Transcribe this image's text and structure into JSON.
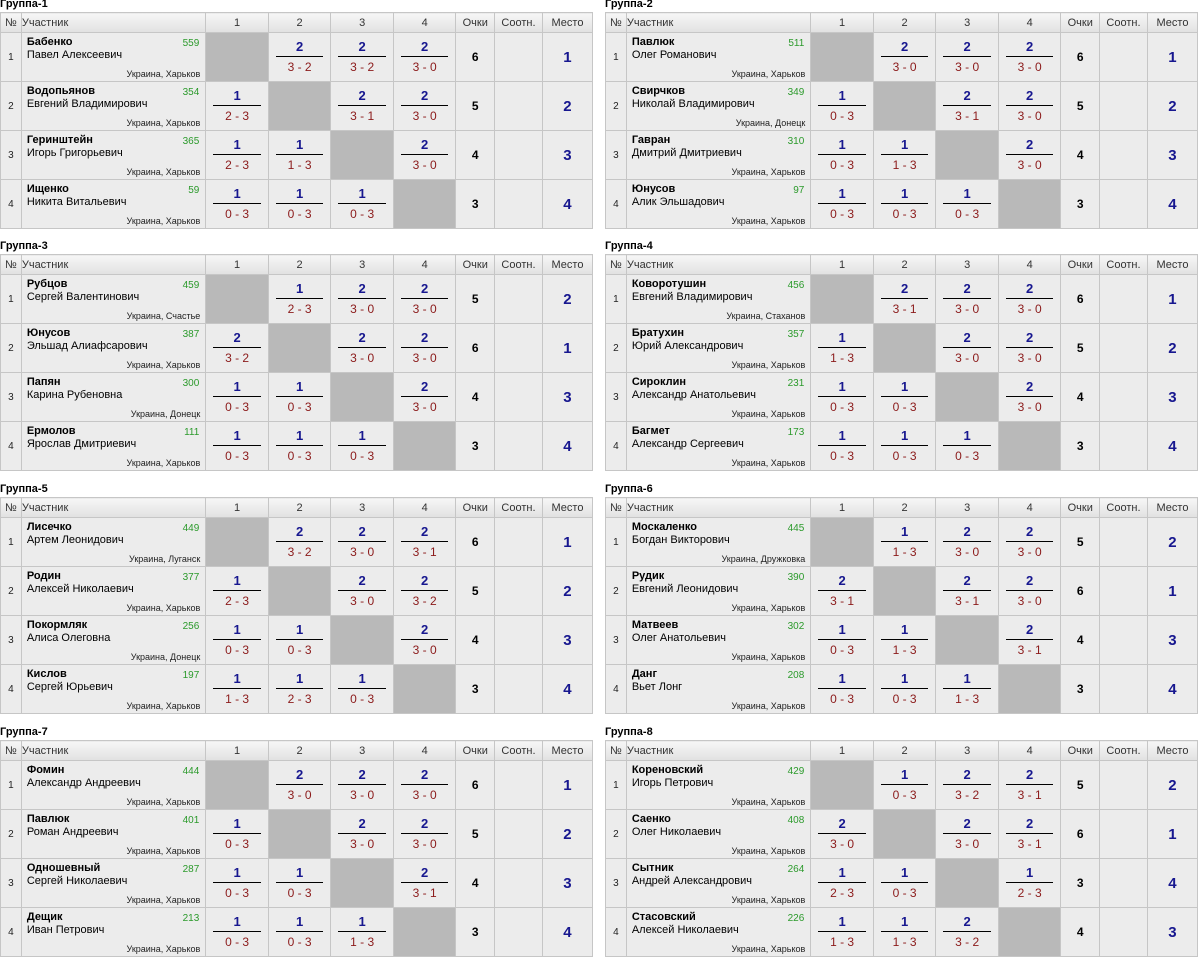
{
  "headers": {
    "no": "№",
    "participant": "Участник",
    "cols": [
      "1",
      "2",
      "3",
      "4"
    ],
    "points": "Очки",
    "ratio": "Соотн.",
    "place": "Место"
  },
  "groups": [
    {
      "title": "Группа-1",
      "players": [
        {
          "num": "1",
          "last": "Бабенко",
          "first": "Павел Алексеевич",
          "rating": "559",
          "loc": "Украина, Харьков",
          "results": [
            null,
            {
              "p": "2",
              "s": "3 - 2"
            },
            {
              "p": "2",
              "s": "3 - 2"
            },
            {
              "p": "2",
              "s": "3 - 0"
            }
          ],
          "total": "6",
          "place": "1"
        },
        {
          "num": "2",
          "last": "Водопьянов",
          "first": "Евгений Владимирович",
          "rating": "354",
          "loc": "Украина, Харьков",
          "results": [
            {
              "p": "1",
              "s": "2 - 3"
            },
            null,
            {
              "p": "2",
              "s": "3 - 1"
            },
            {
              "p": "2",
              "s": "3 - 0"
            }
          ],
          "total": "5",
          "place": "2"
        },
        {
          "num": "3",
          "last": "Геринштейн",
          "first": "Игорь Григорьевич",
          "rating": "365",
          "loc": "Украина, Харьков",
          "results": [
            {
              "p": "1",
              "s": "2 - 3"
            },
            {
              "p": "1",
              "s": "1 - 3"
            },
            null,
            {
              "p": "2",
              "s": "3 - 0"
            }
          ],
          "total": "4",
          "place": "3"
        },
        {
          "num": "4",
          "last": "Ищенко",
          "first": "Никита Витальевич",
          "rating": "59",
          "loc": "Украина, Харьков",
          "results": [
            {
              "p": "1",
              "s": "0 - 3"
            },
            {
              "p": "1",
              "s": "0 - 3"
            },
            {
              "p": "1",
              "s": "0 - 3"
            },
            null
          ],
          "total": "3",
          "place": "4"
        }
      ]
    },
    {
      "title": "Группа-2",
      "players": [
        {
          "num": "1",
          "last": "Павлюк",
          "first": "Олег Романович",
          "rating": "511",
          "loc": "Украина, Харьков",
          "results": [
            null,
            {
              "p": "2",
              "s": "3 - 0"
            },
            {
              "p": "2",
              "s": "3 - 0"
            },
            {
              "p": "2",
              "s": "3 - 0"
            }
          ],
          "total": "6",
          "place": "1"
        },
        {
          "num": "2",
          "last": "Свирчков",
          "first": "Николай Владимирович",
          "rating": "349",
          "loc": "Украина, Донецк",
          "results": [
            {
              "p": "1",
              "s": "0 - 3"
            },
            null,
            {
              "p": "2",
              "s": "3 - 1"
            },
            {
              "p": "2",
              "s": "3 - 0"
            }
          ],
          "total": "5",
          "place": "2"
        },
        {
          "num": "3",
          "last": "Гавран",
          "first": "Дмитрий Дмитриевич",
          "rating": "310",
          "loc": "Украина, Харьков",
          "results": [
            {
              "p": "1",
              "s": "0 - 3"
            },
            {
              "p": "1",
              "s": "1 - 3"
            },
            null,
            {
              "p": "2",
              "s": "3 - 0"
            }
          ],
          "total": "4",
          "place": "3"
        },
        {
          "num": "4",
          "last": "Юнусов",
          "first": "Алик Эльшадович",
          "rating": "97",
          "loc": "Украина, Харьков",
          "results": [
            {
              "p": "1",
              "s": "0 - 3"
            },
            {
              "p": "1",
              "s": "0 - 3"
            },
            {
              "p": "1",
              "s": "0 - 3"
            },
            null
          ],
          "total": "3",
          "place": "4"
        }
      ]
    },
    {
      "title": "Группа-3",
      "players": [
        {
          "num": "1",
          "last": "Рубцов",
          "first": "Сергей Валентинович",
          "rating": "459",
          "loc": "Украина, Счастье",
          "results": [
            null,
            {
              "p": "1",
              "s": "2 - 3"
            },
            {
              "p": "2",
              "s": "3 - 0"
            },
            {
              "p": "2",
              "s": "3 - 0"
            }
          ],
          "total": "5",
          "place": "2"
        },
        {
          "num": "2",
          "last": "Юнусов",
          "first": "Эльшад Алиафсарович",
          "rating": "387",
          "loc": "Украина, Харьков",
          "results": [
            {
              "p": "2",
              "s": "3 - 2"
            },
            null,
            {
              "p": "2",
              "s": "3 - 0"
            },
            {
              "p": "2",
              "s": "3 - 0"
            }
          ],
          "total": "6",
          "place": "1"
        },
        {
          "num": "3",
          "last": "Папян",
          "first": "Карина Рубеновна",
          "rating": "300",
          "loc": "Украина, Донецк",
          "results": [
            {
              "p": "1",
              "s": "0 - 3"
            },
            {
              "p": "1",
              "s": "0 - 3"
            },
            null,
            {
              "p": "2",
              "s": "3 - 0"
            }
          ],
          "total": "4",
          "place": "3"
        },
        {
          "num": "4",
          "last": "Ермолов",
          "first": "Ярослав Дмитриевич",
          "rating": "111",
          "loc": "Украина, Харьков",
          "results": [
            {
              "p": "1",
              "s": "0 - 3"
            },
            {
              "p": "1",
              "s": "0 - 3"
            },
            {
              "p": "1",
              "s": "0 - 3"
            },
            null
          ],
          "total": "3",
          "place": "4"
        }
      ]
    },
    {
      "title": "Группа-4",
      "players": [
        {
          "num": "1",
          "last": "Коворотушин",
          "first": "Евгений Владимирович",
          "rating": "456",
          "loc": "Украина, Стаханов",
          "results": [
            null,
            {
              "p": "2",
              "s": "3 - 1"
            },
            {
              "p": "2",
              "s": "3 - 0"
            },
            {
              "p": "2",
              "s": "3 - 0"
            }
          ],
          "total": "6",
          "place": "1"
        },
        {
          "num": "2",
          "last": "Братухин",
          "first": "Юрий Александрович",
          "rating": "357",
          "loc": "Украина, Харьков",
          "results": [
            {
              "p": "1",
              "s": "1 - 3"
            },
            null,
            {
              "p": "2",
              "s": "3 - 0"
            },
            {
              "p": "2",
              "s": "3 - 0"
            }
          ],
          "total": "5",
          "place": "2"
        },
        {
          "num": "3",
          "last": "Сироклин",
          "first": "Александр Анатольевич",
          "rating": "231",
          "loc": "Украина, Харьков",
          "results": [
            {
              "p": "1",
              "s": "0 - 3"
            },
            {
              "p": "1",
              "s": "0 - 3"
            },
            null,
            {
              "p": "2",
              "s": "3 - 0"
            }
          ],
          "total": "4",
          "place": "3"
        },
        {
          "num": "4",
          "last": "Багмет",
          "first": "Александр Сергеевич",
          "rating": "173",
          "loc": "Украина, Харьков",
          "results": [
            {
              "p": "1",
              "s": "0 - 3"
            },
            {
              "p": "1",
              "s": "0 - 3"
            },
            {
              "p": "1",
              "s": "0 - 3"
            },
            null
          ],
          "total": "3",
          "place": "4"
        }
      ]
    },
    {
      "title": "Группа-5",
      "players": [
        {
          "num": "1",
          "last": "Лисечко",
          "first": "Артем Леонидович",
          "rating": "449",
          "loc": "Украина, Луганск",
          "results": [
            null,
            {
              "p": "2",
              "s": "3 - 2"
            },
            {
              "p": "2",
              "s": "3 - 0"
            },
            {
              "p": "2",
              "s": "3 - 1"
            }
          ],
          "total": "6",
          "place": "1"
        },
        {
          "num": "2",
          "last": "Родин",
          "first": "Алексей Николаевич",
          "rating": "377",
          "loc": "Украина, Харьков",
          "results": [
            {
              "p": "1",
              "s": "2 - 3"
            },
            null,
            {
              "p": "2",
              "s": "3 - 0"
            },
            {
              "p": "2",
              "s": "3 - 2"
            }
          ],
          "total": "5",
          "place": "2"
        },
        {
          "num": "3",
          "last": "Покормляк",
          "first": "Алиса Олеговна",
          "rating": "256",
          "loc": "Украина, Донецк",
          "results": [
            {
              "p": "1",
              "s": "0 - 3"
            },
            {
              "p": "1",
              "s": "0 - 3"
            },
            null,
            {
              "p": "2",
              "s": "3 - 0"
            }
          ],
          "total": "4",
          "place": "3"
        },
        {
          "num": "4",
          "last": "Кислов",
          "first": "Сергей Юрьевич",
          "rating": "197",
          "loc": "Украина, Харьков",
          "results": [
            {
              "p": "1",
              "s": "1 - 3"
            },
            {
              "p": "1",
              "s": "2 - 3"
            },
            {
              "p": "1",
              "s": "0 - 3"
            },
            null
          ],
          "total": "3",
          "place": "4"
        }
      ]
    },
    {
      "title": "Группа-6",
      "players": [
        {
          "num": "1",
          "last": "Москаленко",
          "first": "Богдан Викторович",
          "rating": "445",
          "loc": "Украина, Дружковка",
          "results": [
            null,
            {
              "p": "1",
              "s": "1 - 3"
            },
            {
              "p": "2",
              "s": "3 - 0"
            },
            {
              "p": "2",
              "s": "3 - 0"
            }
          ],
          "total": "5",
          "place": "2"
        },
        {
          "num": "2",
          "last": "Рудик",
          "first": "Евгений Леонидович",
          "rating": "390",
          "loc": "Украина, Харьков",
          "results": [
            {
              "p": "2",
              "s": "3 - 1"
            },
            null,
            {
              "p": "2",
              "s": "3 - 1"
            },
            {
              "p": "2",
              "s": "3 - 0"
            }
          ],
          "total": "6",
          "place": "1"
        },
        {
          "num": "3",
          "last": "Матвеев",
          "first": "Олег Анатольевич",
          "rating": "302",
          "loc": "Украина, Харьков",
          "results": [
            {
              "p": "1",
              "s": "0 - 3"
            },
            {
              "p": "1",
              "s": "1 - 3"
            },
            null,
            {
              "p": "2",
              "s": "3 - 1"
            }
          ],
          "total": "4",
          "place": "3"
        },
        {
          "num": "4",
          "last": "Данг",
          "first": "Вьет Лонг",
          "rating": "208",
          "loc": "Украина, Харьков",
          "results": [
            {
              "p": "1",
              "s": "0 - 3"
            },
            {
              "p": "1",
              "s": "0 - 3"
            },
            {
              "p": "1",
              "s": "1 - 3"
            },
            null
          ],
          "total": "3",
          "place": "4"
        }
      ]
    },
    {
      "title": "Группа-7",
      "players": [
        {
          "num": "1",
          "last": "Фомин",
          "first": "Александр Андреевич",
          "rating": "444",
          "loc": "Украина, Харьков",
          "results": [
            null,
            {
              "p": "2",
              "s": "3 - 0"
            },
            {
              "p": "2",
              "s": "3 - 0"
            },
            {
              "p": "2",
              "s": "3 - 0"
            }
          ],
          "total": "6",
          "place": "1"
        },
        {
          "num": "2",
          "last": "Павлюк",
          "first": "Роман Андреевич",
          "rating": "401",
          "loc": "Украина, Харьков",
          "results": [
            {
              "p": "1",
              "s": "0 - 3"
            },
            null,
            {
              "p": "2",
              "s": "3 - 0"
            },
            {
              "p": "2",
              "s": "3 - 0"
            }
          ],
          "total": "5",
          "place": "2"
        },
        {
          "num": "3",
          "last": "Одношевный",
          "first": "Сергей Николаевич",
          "rating": "287",
          "loc": "Украина, Харьков",
          "results": [
            {
              "p": "1",
              "s": "0 - 3"
            },
            {
              "p": "1",
              "s": "0 - 3"
            },
            null,
            {
              "p": "2",
              "s": "3 - 1"
            }
          ],
          "total": "4",
          "place": "3"
        },
        {
          "num": "4",
          "last": "Дещик",
          "first": "Иван Петрович",
          "rating": "213",
          "loc": "Украина, Харьков",
          "results": [
            {
              "p": "1",
              "s": "0 - 3"
            },
            {
              "p": "1",
              "s": "0 - 3"
            },
            {
              "p": "1",
              "s": "1 - 3"
            },
            null
          ],
          "total": "3",
          "place": "4"
        }
      ]
    },
    {
      "title": "Группа-8",
      "players": [
        {
          "num": "1",
          "last": "Кореновский",
          "first": "Игорь Петрович",
          "rating": "429",
          "loc": "Украина, Харьков",
          "results": [
            null,
            {
              "p": "1",
              "s": "0 - 3"
            },
            {
              "p": "2",
              "s": "3 - 2"
            },
            {
              "p": "2",
              "s": "3 - 1"
            }
          ],
          "total": "5",
          "place": "2"
        },
        {
          "num": "2",
          "last": "Саенко",
          "first": "Олег Николаевич",
          "rating": "408",
          "loc": "Украина, Харьков",
          "results": [
            {
              "p": "2",
              "s": "3 - 0"
            },
            null,
            {
              "p": "2",
              "s": "3 - 0"
            },
            {
              "p": "2",
              "s": "3 - 1"
            }
          ],
          "total": "6",
          "place": "1"
        },
        {
          "num": "3",
          "last": "Сытник",
          "first": "Андрей Александрович",
          "rating": "264",
          "loc": "Украина, Харьков",
          "results": [
            {
              "p": "1",
              "s": "2 - 3"
            },
            {
              "p": "1",
              "s": "0 - 3"
            },
            null,
            {
              "p": "1",
              "s": "2 - 3"
            }
          ],
          "total": "3",
          "place": "4"
        },
        {
          "num": "4",
          "last": "Стасовский",
          "first": "Алексей Николаевич",
          "rating": "226",
          "loc": "Украина, Харьков",
          "results": [
            {
              "p": "1",
              "s": "1 - 3"
            },
            {
              "p": "1",
              "s": "1 - 3"
            },
            {
              "p": "2",
              "s": "3 - 2"
            },
            null
          ],
          "total": "4",
          "place": "3"
        }
      ]
    }
  ]
}
